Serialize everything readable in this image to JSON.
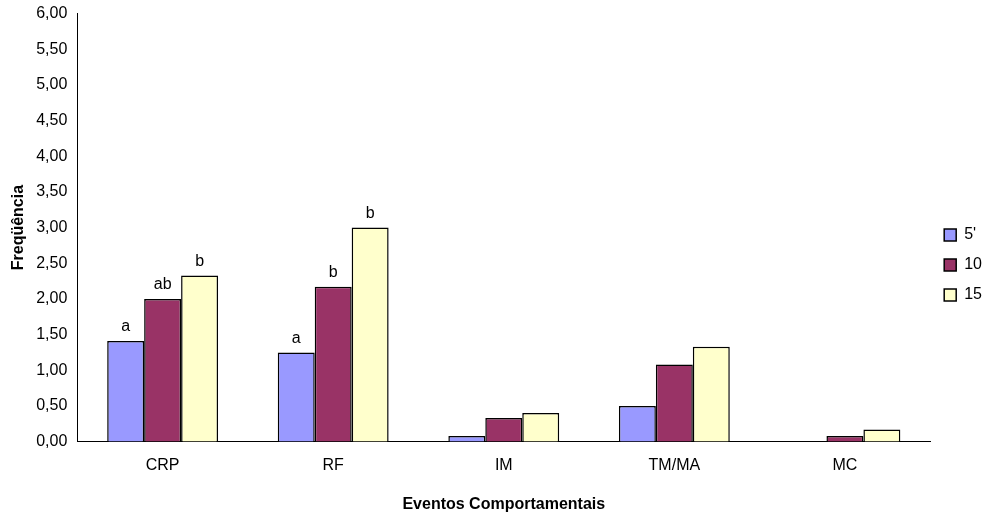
{
  "chart_data": {
    "type": "bar",
    "xlabel": "Eventos Comportamentais",
    "ylabel": "Freqüência",
    "categories": [
      "CRP",
      "RF",
      "IM",
      "TM/MA",
      "MC"
    ],
    "series": [
      {
        "name": "5'",
        "color": "#9999ff",
        "values": [
          1.41,
          1.25,
          0.08,
          0.5,
          0
        ],
        "value_labels": [
          "a",
          "a",
          null,
          null,
          null
        ]
      },
      {
        "name": "10",
        "color": "#993366",
        "values": [
          2.0,
          2.17,
          0.33,
          1.08,
          0.08
        ],
        "value_labels": [
          "ab",
          "b",
          null,
          null,
          null
        ]
      },
      {
        "name": "15",
        "color": "#ffffcc",
        "values": [
          2.33,
          3.0,
          0.4,
          1.33,
          0.17
        ],
        "value_labels": [
          "b",
          "b",
          null,
          null,
          null
        ]
      }
    ],
    "ylim": [
      0,
      6
    ],
    "yticks": [
      {
        "value": 0,
        "label": "0,00"
      },
      {
        "value": 0.5,
        "label": "0,50"
      },
      {
        "value": 1,
        "label": "1,00"
      },
      {
        "value": 1.5,
        "label": "1,50"
      },
      {
        "value": 2,
        "label": "2,00"
      },
      {
        "value": 2.5,
        "label": "2,50"
      },
      {
        "value": 3,
        "label": "3,00"
      },
      {
        "value": 3.5,
        "label": "3,50"
      },
      {
        "value": 4,
        "label": "4,00"
      },
      {
        "value": 4.5,
        "label": "4,50"
      },
      {
        "value": 5,
        "label": "5,00"
      },
      {
        "value": 5.5,
        "label": "5,50"
      },
      {
        "value": 6,
        "label": "6,00"
      }
    ],
    "grid": false,
    "legend": "right"
  }
}
